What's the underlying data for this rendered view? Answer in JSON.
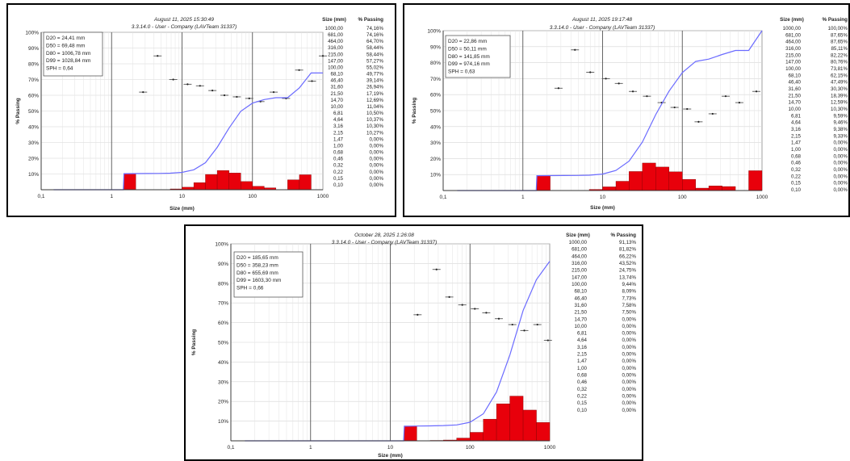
{
  "chart_data": [
    {
      "type": "bar",
      "date": "August 11, 2025 15:30:49",
      "subtitle": "3.3.14.0  -  User - Company (LAVTeam 31337)",
      "xlabel": "Size (mm)",
      "ylabel": "% Passing",
      "xscale": "log",
      "xlim": [
        0.1,
        1000
      ],
      "ylim": [
        0,
        100
      ],
      "x_ticks": [
        "0,1",
        "1",
        "10",
        "100",
        "1000"
      ],
      "y_ticks": [
        "10%",
        "20%",
        "30%",
        "40%",
        "50%",
        "60%",
        "70%",
        "80%",
        "90%",
        "100%"
      ],
      "stats": [
        "D20 = 24,41 mm",
        "D50 = 69,48 mm",
        "D80 = 1006,78 mm",
        "D99 = 1028,84 mm",
        "SPH = 0,64"
      ],
      "table_headers": [
        "Size (mm)",
        "% Passing"
      ],
      "table_sizes": [
        "1000,00",
        "681,00",
        "464,00",
        "316,00",
        "215,00",
        "147,00",
        "100,00",
        "68,10",
        "46,40",
        "31,60",
        "21,50",
        "14,70",
        "10,00",
        "6,81",
        "4,64",
        "3,16",
        "2,15",
        "1,47",
        "1,00",
        "0,68",
        "0,46",
        "0,32",
        "0,22",
        "0,15",
        "0,10"
      ],
      "table_passing": [
        "74,16%",
        "74,16%",
        "64,70%",
        "58,44%",
        "58,44%",
        "57,27%",
        "55,02%",
        "49,77%",
        "39,14%",
        "26,94%",
        "17,19%",
        "12,69%",
        "11,04%",
        "10,50%",
        "10,37%",
        "10,30%",
        "10,27%",
        "0,00%",
        "0,00%",
        "0,00%",
        "0,00%",
        "0,00%",
        "0,00%",
        "0,00%",
        "0,00%"
      ],
      "curve": [
        [
          0.15,
          0
        ],
        [
          1.47,
          0
        ],
        [
          1.5,
          10.2
        ],
        [
          2.15,
          10.27
        ],
        [
          3.16,
          10.3
        ],
        [
          4.64,
          10.37
        ],
        [
          6.81,
          10.5
        ],
        [
          10,
          11.04
        ],
        [
          14.7,
          12.69
        ],
        [
          21.5,
          17.19
        ],
        [
          31.6,
          26.94
        ],
        [
          46.4,
          39.14
        ],
        [
          68.1,
          49.77
        ],
        [
          100,
          55.02
        ],
        [
          147,
          57.27
        ],
        [
          215,
          58.44
        ],
        [
          316,
          58.44
        ],
        [
          464,
          64.7
        ],
        [
          681,
          74.16
        ],
        [
          1000,
          74.16
        ]
      ],
      "bars": [
        [
          1.5,
          2.2,
          10.3
        ],
        [
          6.81,
          10,
          0.5
        ],
        [
          10,
          14.7,
          1.6
        ],
        [
          14.7,
          21.5,
          4.5
        ],
        [
          21.5,
          31.6,
          9.7
        ],
        [
          31.6,
          46.4,
          12.2
        ],
        [
          46.4,
          68.1,
          10.6
        ],
        [
          68.1,
          100,
          5.2
        ],
        [
          100,
          147,
          2.2
        ],
        [
          147,
          215,
          1.2
        ],
        [
          316,
          464,
          6.3
        ],
        [
          464,
          681,
          9.5
        ]
      ],
      "frequency_points": [
        [
          2.8,
          62
        ],
        [
          4.5,
          85
        ],
        [
          7.5,
          70
        ],
        [
          12,
          67
        ],
        [
          18,
          66
        ],
        [
          27,
          63
        ],
        [
          40,
          60
        ],
        [
          60,
          59
        ],
        [
          90,
          58
        ],
        [
          130,
          56
        ],
        [
          200,
          62
        ],
        [
          300,
          58
        ],
        [
          460,
          76
        ],
        [
          700,
          69
        ],
        [
          1000,
          85
        ]
      ]
    },
    {
      "type": "bar",
      "date": "August 11, 2025 19:17:48",
      "subtitle": "3.3.14.0  -  User - Company (LAVTeam 31337)",
      "xlabel": "Size (mm)",
      "ylabel": "% Passing",
      "xscale": "log",
      "xlim": [
        0.1,
        1000
      ],
      "ylim": [
        0,
        100
      ],
      "x_ticks": [
        "0,1",
        "1",
        "10",
        "100",
        "1000"
      ],
      "y_ticks": [
        "10%",
        "20%",
        "30%",
        "40%",
        "50%",
        "60%",
        "70%",
        "80%",
        "90%",
        "100%"
      ],
      "stats": [
        "D20 = 22,86 mm",
        "D50 = 50,11 mm",
        "D80 = 141,85 mm",
        "D99 = 974,16 mm",
        "SPH = 0,63"
      ],
      "table_headers": [
        "Size (mm)",
        "% Passing"
      ],
      "table_sizes": [
        "1000,00",
        "681,00",
        "464,00",
        "316,00",
        "215,00",
        "147,00",
        "100,00",
        "68,10",
        "46,40",
        "31,60",
        "21,50",
        "14,70",
        "10,00",
        "6,81",
        "4,64",
        "3,16",
        "2,15",
        "1,47",
        "1,00",
        "0,68",
        "0,46",
        "0,32",
        "0,22",
        "0,15",
        "0,10"
      ],
      "table_passing": [
        "100,00%",
        "87,65%",
        "87,65%",
        "85,11%",
        "82,22%",
        "80,76%",
        "73,81%",
        "62,15%",
        "47,49%",
        "30,30%",
        "18,39%",
        "12,59%",
        "10,30%",
        "9,59%",
        "9,46%",
        "9,38%",
        "9,33%",
        "0,00%",
        "0,00%",
        "0,00%",
        "0,00%",
        "0,00%",
        "0,00%",
        "0,00%",
        "0,00%"
      ],
      "curve": [
        [
          0.15,
          0
        ],
        [
          1.47,
          0
        ],
        [
          1.5,
          9.3
        ],
        [
          2.15,
          9.33
        ],
        [
          3.16,
          9.38
        ],
        [
          4.64,
          9.46
        ],
        [
          6.81,
          9.59
        ],
        [
          10,
          10.3
        ],
        [
          14.7,
          12.59
        ],
        [
          21.5,
          18.39
        ],
        [
          31.6,
          30.3
        ],
        [
          46.4,
          47.49
        ],
        [
          68.1,
          62.15
        ],
        [
          100,
          73.81
        ],
        [
          147,
          80.76
        ],
        [
          215,
          82.22
        ],
        [
          316,
          85.11
        ],
        [
          464,
          87.65
        ],
        [
          681,
          87.65
        ],
        [
          1000,
          100
        ]
      ],
      "bars": [
        [
          1.5,
          2.2,
          9.3
        ],
        [
          6.81,
          10,
          0.7
        ],
        [
          10,
          14.7,
          2.3
        ],
        [
          14.7,
          21.5,
          5.8
        ],
        [
          21.5,
          31.6,
          11.9
        ],
        [
          31.6,
          46.4,
          17.2
        ],
        [
          46.4,
          68.1,
          14.7
        ],
        [
          68.1,
          100,
          11.7
        ],
        [
          100,
          147,
          7.0
        ],
        [
          147,
          215,
          1.5
        ],
        [
          215,
          316,
          2.9
        ],
        [
          316,
          464,
          2.5
        ],
        [
          681,
          1000,
          12.4
        ]
      ],
      "frequency_points": [
        [
          2.8,
          64
        ],
        [
          4.5,
          88
        ],
        [
          7,
          74
        ],
        [
          11,
          70
        ],
        [
          16,
          67
        ],
        [
          24,
          62
        ],
        [
          36,
          59
        ],
        [
          55,
          55
        ],
        [
          80,
          52
        ],
        [
          115,
          51
        ],
        [
          160,
          43
        ],
        [
          240,
          48
        ],
        [
          350,
          59
        ],
        [
          520,
          55
        ],
        [
          850,
          62
        ]
      ]
    },
    {
      "type": "bar",
      "date": "October 28, 2025 1:26:08",
      "subtitle": "3.3.14.0  -  User - Company (LAVTeam 31337)",
      "xlabel": "Size (mm)",
      "ylabel": "% Passing",
      "xscale": "log",
      "xlim": [
        0.1,
        1000
      ],
      "ylim": [
        0,
        100
      ],
      "x_ticks": [
        "0,1",
        "1",
        "10",
        "100",
        "1000"
      ],
      "y_ticks": [
        "10%",
        "20%",
        "30%",
        "40%",
        "50%",
        "60%",
        "70%",
        "80%",
        "90%",
        "100%"
      ],
      "stats": [
        "D20 = 185,65 mm",
        "D50 = 358,23 mm",
        "D80 = 655,69 mm",
        "D99 = 1603,30 mm",
        "SPH = 0,66"
      ],
      "table_headers": [
        "Size (mm)",
        "% Passing"
      ],
      "table_sizes": [
        "1000,00",
        "681,00",
        "464,00",
        "316,00",
        "215,00",
        "147,00",
        "100,00",
        "68,10",
        "46,40",
        "31,60",
        "21,50",
        "14,70",
        "10,00",
        "6,81",
        "4,64",
        "3,16",
        "2,15",
        "1,47",
        "1,00",
        "0,68",
        "0,46",
        "0,32",
        "0,22",
        "0,15",
        "0,10"
      ],
      "table_passing": [
        "91,13%",
        "81,82%",
        "66,22%",
        "43,52%",
        "24,75%",
        "13,74%",
        "9,44%",
        "8,09%",
        "7,73%",
        "7,58%",
        "7,50%",
        "0,00%",
        "0,00%",
        "0,00%",
        "0,00%",
        "0,00%",
        "0,00%",
        "0,00%",
        "0,00%",
        "0,00%",
        "0,00%",
        "0,00%",
        "0,00%",
        "0,00%",
        "0,00%"
      ],
      "curve": [
        [
          0.15,
          0
        ],
        [
          14.7,
          0
        ],
        [
          15,
          7.4
        ],
        [
          21.5,
          7.5
        ],
        [
          31.6,
          7.58
        ],
        [
          46.4,
          7.73
        ],
        [
          68.1,
          8.09
        ],
        [
          100,
          9.44
        ],
        [
          147,
          13.74
        ],
        [
          215,
          24.75
        ],
        [
          316,
          43.52
        ],
        [
          464,
          66.22
        ],
        [
          681,
          81.82
        ],
        [
          1000,
          91.13
        ]
      ],
      "bars": [
        [
          15,
          21.5,
          7.5
        ],
        [
          31.6,
          46.4,
          0.2
        ],
        [
          46.4,
          68.1,
          0.4
        ],
        [
          68.1,
          100,
          1.4
        ],
        [
          100,
          147,
          4.3
        ],
        [
          147,
          215,
          11.0
        ],
        [
          215,
          316,
          18.8
        ],
        [
          316,
          464,
          22.7
        ],
        [
          464,
          681,
          15.6
        ],
        [
          681,
          1000,
          9.3
        ]
      ],
      "frequency_points": [
        [
          22,
          64
        ],
        [
          38,
          87
        ],
        [
          55,
          73
        ],
        [
          80,
          69
        ],
        [
          115,
          67
        ],
        [
          160,
          65
        ],
        [
          230,
          62
        ],
        [
          340,
          59
        ],
        [
          480,
          56
        ],
        [
          700,
          59
        ],
        [
          950,
          51
        ]
      ]
    }
  ]
}
